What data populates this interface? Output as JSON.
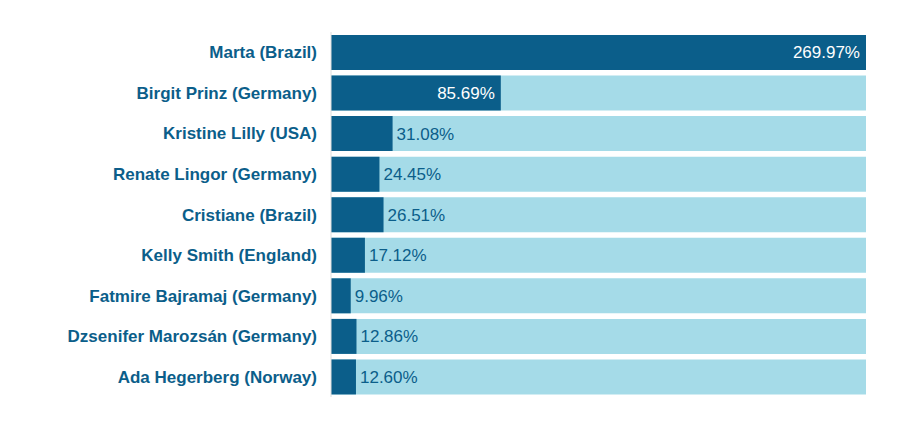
{
  "chart_data": {
    "type": "bar",
    "orientation": "horizontal",
    "categories": [
      "Marta (Brazil)",
      "Birgit Prinz (Germany)",
      "Kristine Lilly (USA)",
      "Renate Lingor (Germany)",
      "Cristiane (Brazil)",
      "Kelly Smith (England)",
      "Fatmire Bajramaj (Germany)",
      "Dzsenifer Marozsán (Germany)",
      "Ada Hegerberg (Norway)"
    ],
    "values": [
      269.97,
      85.69,
      31.08,
      24.45,
      26.51,
      17.12,
      9.96,
      12.86,
      12.6
    ],
    "value_labels": [
      "269.97%",
      "85.69%",
      "31.08%",
      "24.45%",
      "26.51%",
      "17.12%",
      "9.96%",
      "12.86%",
      "12.60%"
    ],
    "color": "#0b5e8a",
    "xlim": [
      0,
      269.97
    ],
    "data_labels": true,
    "tick_labels": "y",
    "grid": false
  }
}
